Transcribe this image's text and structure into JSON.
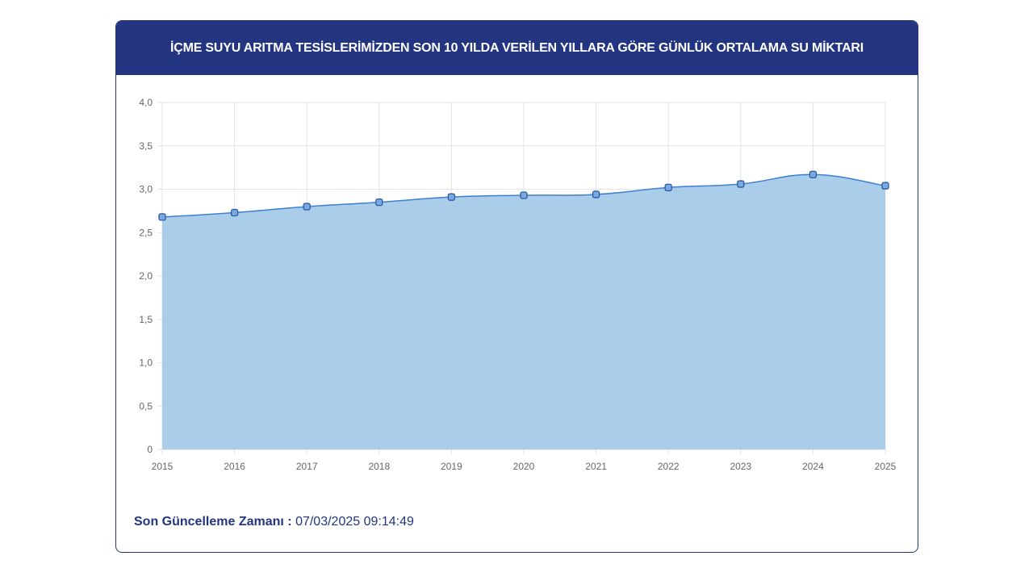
{
  "header": {
    "title": "İÇME SUYU ARITMA TESİSLERİMİZDEN SON 10 YILDA VERİLEN YILLARA GÖRE GÜNLÜK ORTALAMA SU MİKTARI"
  },
  "footer": {
    "label": "Son Güncelleme Zamanı :",
    "value": "07/03/2025 09:14:49"
  },
  "colors": {
    "header_bg": "#233580",
    "line": "#3d7fd0",
    "fill": "#aacdea"
  },
  "chart_data": {
    "type": "area",
    "title": "İÇME SUYU ARITMA TESİSLERİMİZDEN SON 10 YILDA VERİLEN YILLARA GÖRE GÜNLÜK ORTALAMA SU MİKTARI",
    "xlabel": "",
    "ylabel": "",
    "categories": [
      "2015",
      "2016",
      "2017",
      "2018",
      "2019",
      "2020",
      "2021",
      "2022",
      "2023",
      "2024",
      "2025"
    ],
    "values": [
      2.68,
      2.73,
      2.8,
      2.85,
      2.91,
      2.93,
      2.94,
      3.02,
      3.06,
      3.17,
      3.04
    ],
    "ylim": [
      0,
      4.0
    ],
    "yticks": [
      "0",
      "0,5",
      "1,0",
      "1,5",
      "2,0",
      "2,5",
      "3,0",
      "3,5",
      "4,0"
    ],
    "grid": true,
    "legend": "none"
  }
}
